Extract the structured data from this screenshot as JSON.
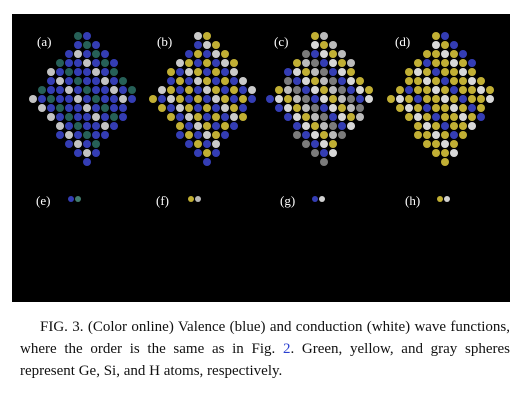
{
  "figure": {
    "panel_labels": [
      "(a)",
      "(b)",
      "(c)",
      "(d)",
      "(e)",
      "(f)",
      "(g)",
      "(h)"
    ]
  },
  "caption": {
    "before_link": "FIG. 3. (Color online) Valence (blue) and conduction (white) wave functions, where the order is the same as in Fig. ",
    "link": "2",
    "after_link": ". Green, yellow, and gray spheres represent Ge, Si, and H atoms, respectively."
  }
}
